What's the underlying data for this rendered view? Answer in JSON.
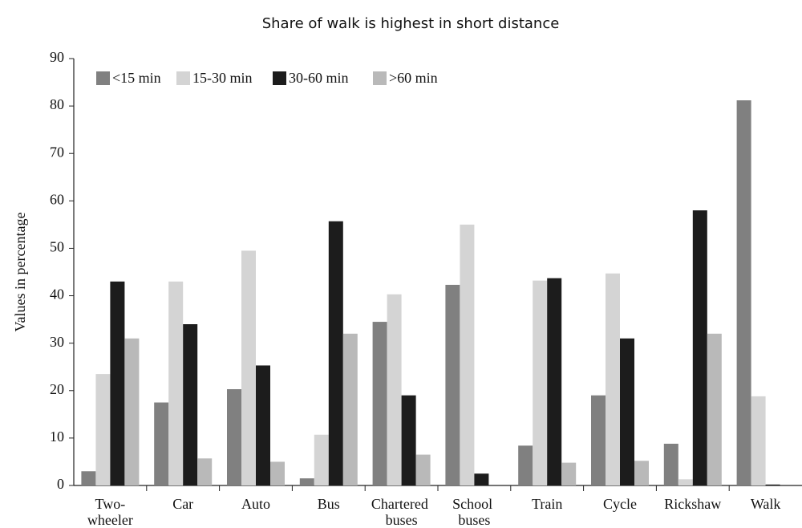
{
  "chart_data": {
    "type": "bar",
    "title": "Share of walk is highest in short distance",
    "ylabel": "Values in percentage",
    "categories": [
      "Two-wheeler",
      "Car",
      "Auto",
      "Bus",
      "Chartered buses",
      "School buses",
      "Train",
      "Cycle",
      "Rickshaw",
      "Walk"
    ],
    "series": [
      {
        "name": "<15 min",
        "color": "#808080",
        "values": [
          3,
          17.5,
          20.3,
          1.5,
          34.5,
          42.3,
          8.4,
          19,
          8.8,
          81.2
        ]
      },
      {
        "name": "15-30 min",
        "color": "#d4d4d4",
        "values": [
          23.5,
          43,
          49.5,
          10.7,
          40.3,
          55,
          43.2,
          44.7,
          1.3,
          18.8
        ]
      },
      {
        "name": "30-60 min",
        "color": "#1c1c1c",
        "values": [
          43,
          34,
          25.3,
          55.7,
          19,
          2.5,
          43.7,
          31,
          58,
          0.2
        ]
      },
      {
        "name": ">60 min",
        "color": "#b9b9b9",
        "values": [
          31,
          5.7,
          5,
          32,
          6.5,
          0,
          4.8,
          5.2,
          32,
          0
        ]
      }
    ],
    "ylim": [
      0,
      90
    ],
    "yticks": [
      0,
      10,
      20,
      30,
      40,
      50,
      60,
      70,
      80,
      90
    ],
    "legend": "top-left"
  }
}
